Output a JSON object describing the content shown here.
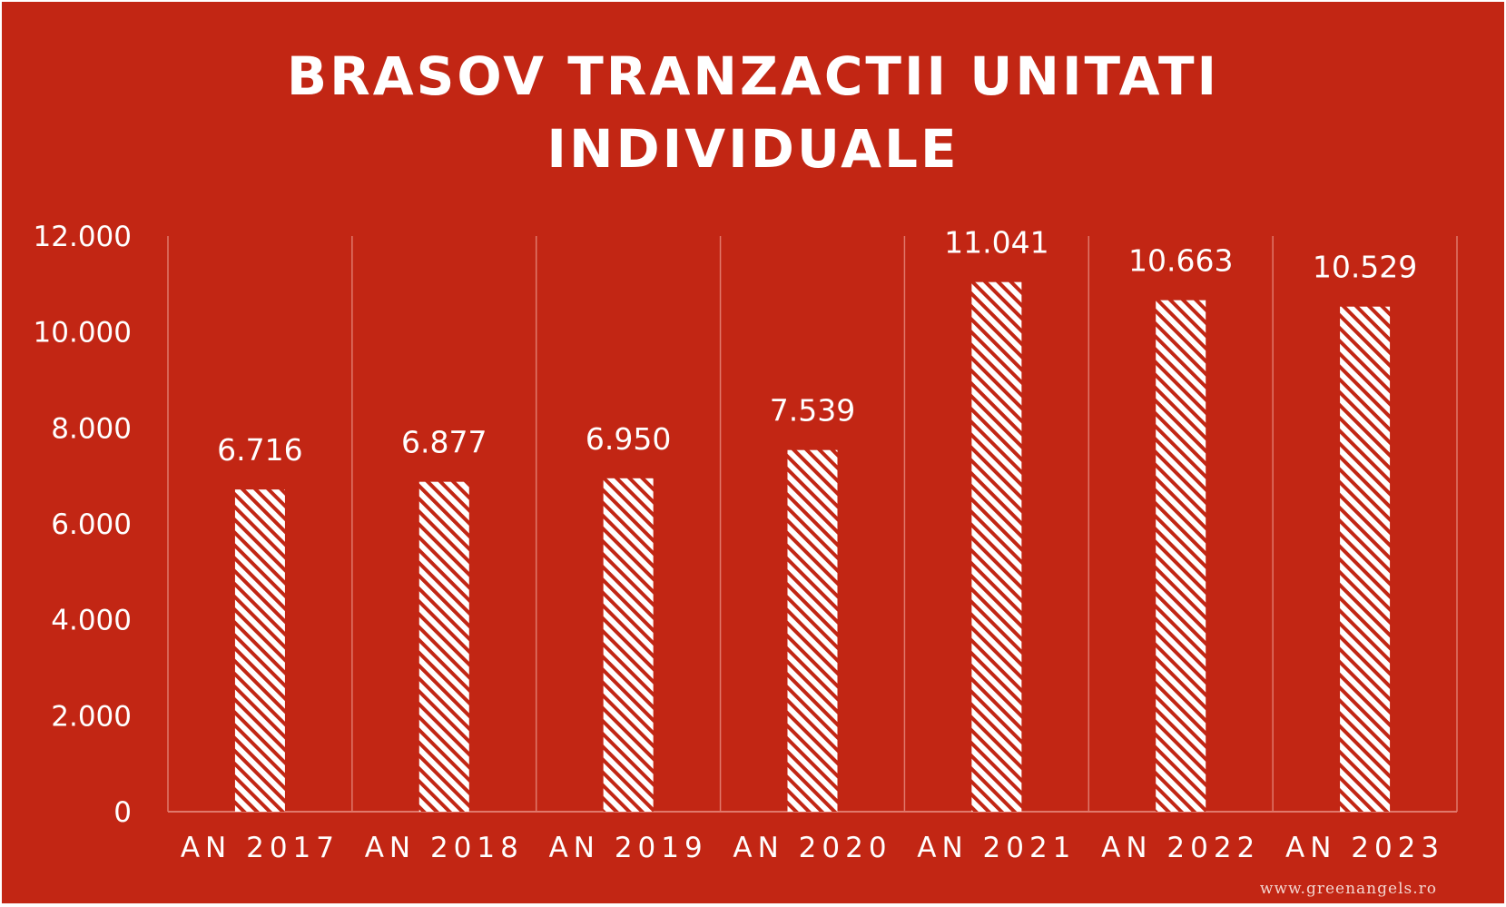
{
  "chart_data": {
    "type": "bar",
    "title_lines": [
      "BRASOV TRANZACTII UNITATI",
      "INDIVIDUALE"
    ],
    "categories": [
      "AN 2017",
      "AN 2018",
      "AN 2019",
      "AN 2020",
      "AN 2021",
      "AN 2022",
      "AN 2023"
    ],
    "values": [
      6716,
      6877,
      6950,
      7539,
      11041,
      10663,
      10529
    ],
    "value_labels": [
      "6.716",
      "6.877",
      "6.950",
      "7.539",
      "11.041",
      "10.663",
      "10.529"
    ],
    "y_ticks": [
      0,
      2000,
      4000,
      6000,
      8000,
      10000,
      12000
    ],
    "y_tick_labels": [
      "0",
      "2.000",
      "4.000",
      "6.000",
      "8.000",
      "10.000",
      "12.000"
    ],
    "ylim": [
      0,
      12000
    ],
    "grid": "vertical",
    "bar_fill": "diagonal-stripes",
    "colors": {
      "background": "#c22614",
      "bar_stripe": "#ffffff",
      "text": "#ffffff",
      "gridline": "#e0786b"
    }
  },
  "watermark": "www.greenangels.ro"
}
